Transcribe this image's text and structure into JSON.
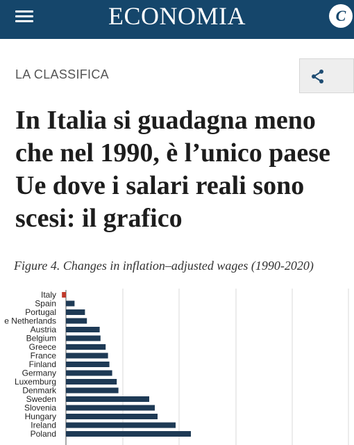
{
  "header": {
    "section_title": "ECONOMIA",
    "brand_badge": "C",
    "menu_icon": "hamburger-menu-icon",
    "background_color": "#15466b"
  },
  "article": {
    "kicker": "LA CLASSIFICA",
    "share_icon": "share-icon",
    "headline_lines": [
      "In Italia si guadagna meno",
      "che nel 1990, è l’unico paese",
      "Ue dove i salari reali sono",
      "scesi: il grafico"
    ]
  },
  "figure": {
    "caption": "Figure 4. Changes in inflation–adjusted wages (1990-2020)"
  },
  "chart_data": {
    "type": "bar",
    "orientation": "horizontal",
    "title": "Figure 4. Changes in inflation–adjusted wages (1990-2020)",
    "categories": [
      "Italy",
      "Spain",
      "Portugal",
      "The Netherlands",
      "Austria",
      "Belgium",
      "Greece",
      "France",
      "Finland",
      "Germany",
      "Luxemburg",
      "Denmark",
      "Sweden",
      "Slovenia",
      "Hungary",
      "Ireland",
      "Poland"
    ],
    "category_labels_visible": [
      "Italy",
      "Spain",
      "Portugal",
      "e Netherlands",
      "Austria",
      "Belgium",
      "Greece",
      "France",
      "Finland",
      "Germany",
      "Luxemburg",
      "Denmark",
      "Sweden",
      "Slovenia",
      "Hungary",
      "Ireland",
      "Poland"
    ],
    "series": [
      {
        "values": [
          -2.9,
          6.2,
          13.7,
          15.1,
          24.3,
          24.9,
          28.6,
          30.3,
          31.3,
          33.3,
          36.6,
          37.8,
          60.0,
          64.0,
          66.0,
          79.0,
          90.0
        ]
      }
    ],
    "grid": true,
    "bar_color": "#1e3a55",
    "negative_bar_color": "#c0392b"
  }
}
